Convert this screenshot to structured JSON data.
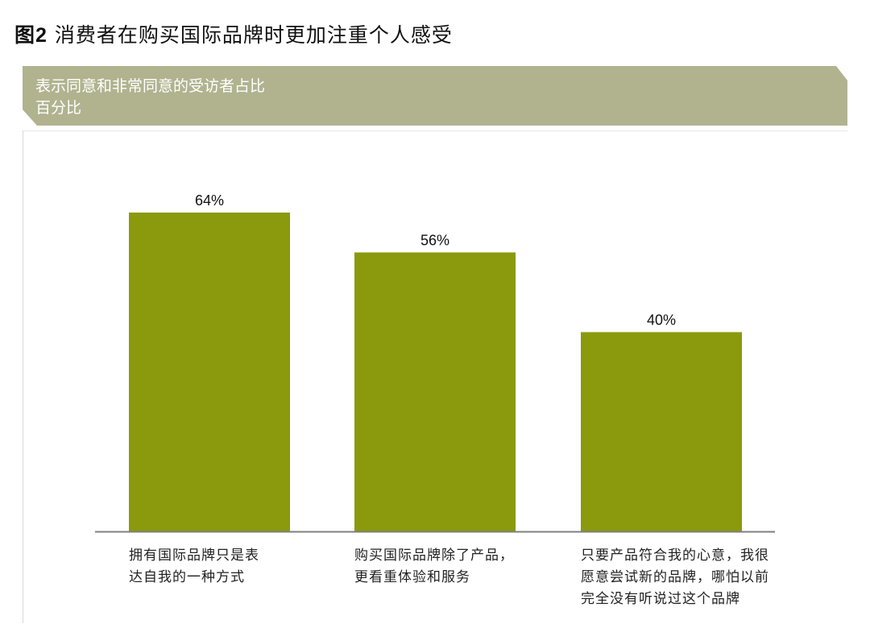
{
  "figure": {
    "number": "图2",
    "title": "消费者在购买国际品牌时更加注重个人感受"
  },
  "banner": {
    "line1": "表示同意和非常同意的受访者占比",
    "line2": "百分比"
  },
  "colors": {
    "bar": "#8a9a0c",
    "banner": "#b1b38f",
    "axis": "#7f7f7f"
  },
  "chart_data": {
    "type": "bar",
    "title": "",
    "xlabel": "",
    "ylabel": "",
    "ylim": [
      0,
      64
    ],
    "grid": false,
    "legend": "none",
    "categories": [
      "拥有国际品牌只是表\n达自我的一种方式",
      "购买国际品牌除了产品，\n更看重体验和服务",
      "只要产品符合我的心意，我很\n愿意尝试新的品牌，哪怕以前\n完全没有听说过这个品牌"
    ],
    "values": [
      64,
      56,
      40
    ],
    "data_labels": [
      "64%",
      "56%",
      "40%"
    ]
  }
}
